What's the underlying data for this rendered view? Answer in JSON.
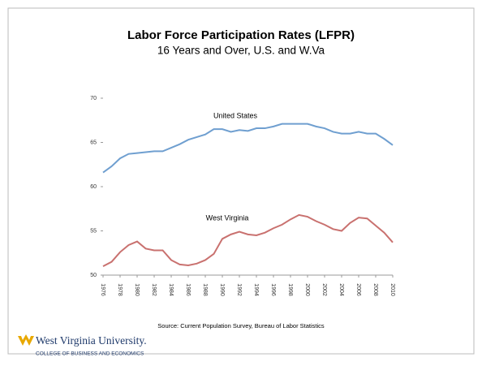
{
  "chart_data": {
    "type": "line",
    "title": "Labor Force Participation Rates (LFPR)",
    "subtitle": "16 Years and Over, U.S. and W.Va",
    "x": [
      1976,
      1977,
      1978,
      1979,
      1980,
      1981,
      1982,
      1983,
      1984,
      1985,
      1986,
      1987,
      1988,
      1989,
      1990,
      1991,
      1992,
      1993,
      1994,
      1995,
      1996,
      1997,
      1998,
      1999,
      2000,
      2001,
      2002,
      2003,
      2004,
      2005,
      2006,
      2007,
      2008,
      2009,
      2010
    ],
    "series": [
      {
        "name": "United States",
        "color": "#6f9fd0",
        "values": [
          61.6,
          62.3,
          63.2,
          63.7,
          63.8,
          63.9,
          64.0,
          64.0,
          64.4,
          64.8,
          65.3,
          65.6,
          65.9,
          66.5,
          66.5,
          66.2,
          66.4,
          66.3,
          66.6,
          66.6,
          66.8,
          67.1,
          67.1,
          67.1,
          67.1,
          66.8,
          66.6,
          66.2,
          66.0,
          66.0,
          66.2,
          66.0,
          66.0,
          65.4,
          64.7
        ]
      },
      {
        "name": "West Virginia",
        "color": "#c9716f",
        "values": [
          51.0,
          51.5,
          52.6,
          53.4,
          53.8,
          53.0,
          52.8,
          52.8,
          51.7,
          51.2,
          51.1,
          51.3,
          51.7,
          52.4,
          54.1,
          54.6,
          54.9,
          54.6,
          54.5,
          54.8,
          55.3,
          55.7,
          56.3,
          56.8,
          56.6,
          56.1,
          55.7,
          55.2,
          55.0,
          55.9,
          56.5,
          56.4,
          55.6,
          54.8,
          53.7
        ]
      }
    ],
    "xlim": [
      1976,
      2010
    ],
    "xticks": [
      1976,
      1978,
      1980,
      1982,
      1984,
      1986,
      1988,
      1990,
      1992,
      1994,
      1996,
      1998,
      2000,
      2002,
      2004,
      2006,
      2008,
      2010
    ],
    "ylim": [
      50,
      70
    ],
    "yticks": [
      50,
      55,
      60,
      65,
      70
    ],
    "grid": false
  },
  "footer": {
    "source": "Source: Current Population Survey, Bureau of Labor Statistics",
    "logo_name": "West Virginia University.",
    "logo_subtitle": "COLLEGE OF BUSINESS AND ECONOMICS"
  }
}
